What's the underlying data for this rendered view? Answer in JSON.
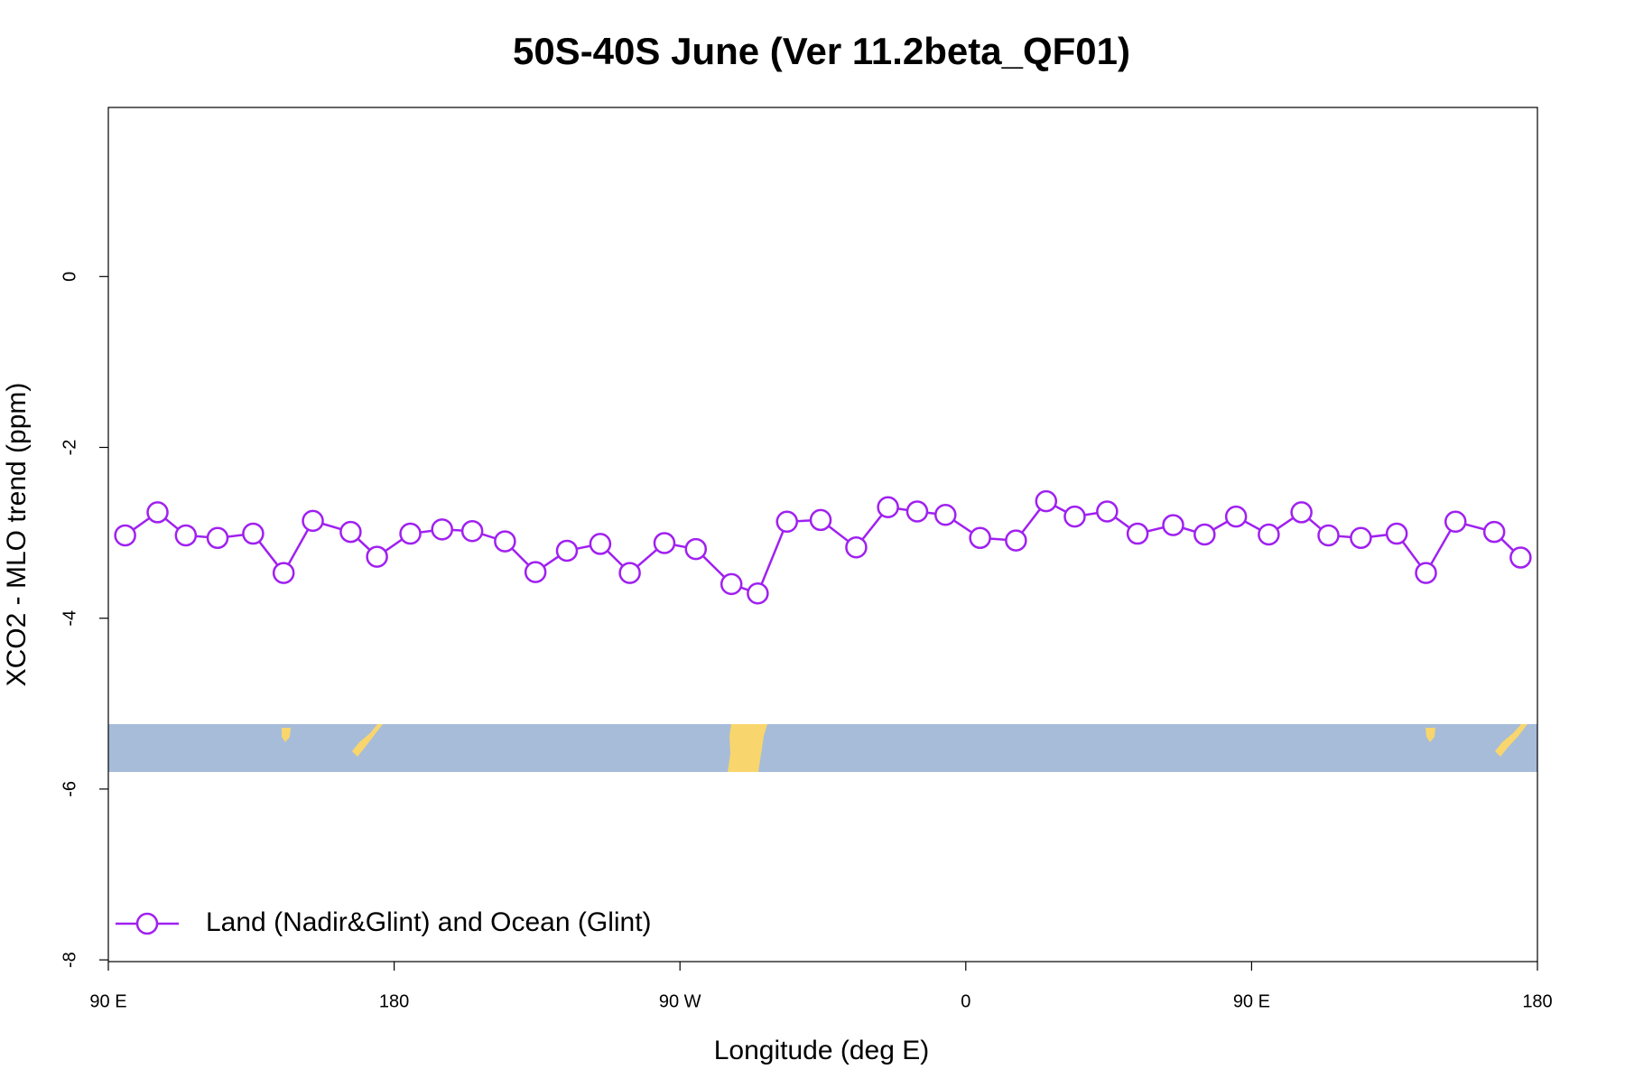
{
  "chart_data": {
    "type": "line",
    "title": "50S-40S June (Ver 11.2beta_QF01)",
    "xlabel": "Longitude (deg E)",
    "ylabel": "XCO2 - MLO trend (ppm)",
    "x": [
      95.3,
      105.5,
      114.4,
      124.4,
      135.6,
      145.2,
      154.4,
      166.3,
      174.6,
      185.1,
      195.1,
      204.6,
      214.9,
      224.5,
      234.4,
      244.9,
      254.2,
      265.1,
      275.0,
      286.2,
      294.5,
      303.7,
      314.3,
      325.5,
      335.5,
      344.7,
      353.6,
      364.5,
      375.8,
      385.3,
      394.3,
      404.5,
      414.1,
      425.3,
      435.2,
      445.1,
      455.4,
      465.7,
      474.2,
      484.4,
      495.7,
      504.9,
      514.2,
      526.4,
      534.7
    ],
    "series": [
      {
        "name": "Land (Nadir&Glint) and Ocean (Glint)",
        "color": "#a020f0",
        "values": [
          -3.03,
          -2.76,
          -3.03,
          -3.06,
          -3.01,
          -3.47,
          -2.86,
          -2.99,
          -3.28,
          -3.01,
          -2.96,
          -2.98,
          -3.1,
          -3.46,
          -3.21,
          -3.13,
          -3.47,
          -3.12,
          -3.19,
          -3.6,
          -3.71,
          -2.87,
          -2.85,
          -3.17,
          -2.7,
          -2.75,
          -2.79,
          -3.06,
          -3.09,
          -2.63,
          -2.81,
          -2.75,
          -3.01,
          -2.91,
          -3.02,
          -2.81,
          -3.02,
          -2.76,
          -3.03,
          -3.06,
          -3.01,
          -3.47,
          -2.87,
          -2.99,
          -3.29
        ]
      }
    ],
    "xlim": [
      90,
      540
    ],
    "xticks": [
      {
        "value": 90,
        "label": "90 E"
      },
      180,
      {
        "value": 270,
        "label": "90 W"
      },
      {
        "value": 360,
        "label": "0"
      },
      {
        "value": 450,
        "label": "90 E"
      },
      {
        "value": 540,
        "label": "180"
      }
    ],
    "ylim": [
      -8.02,
      1.98
    ],
    "yticks": [
      -8,
      -6,
      -4,
      -2,
      0
    ],
    "legend": "bottomleft"
  }
}
